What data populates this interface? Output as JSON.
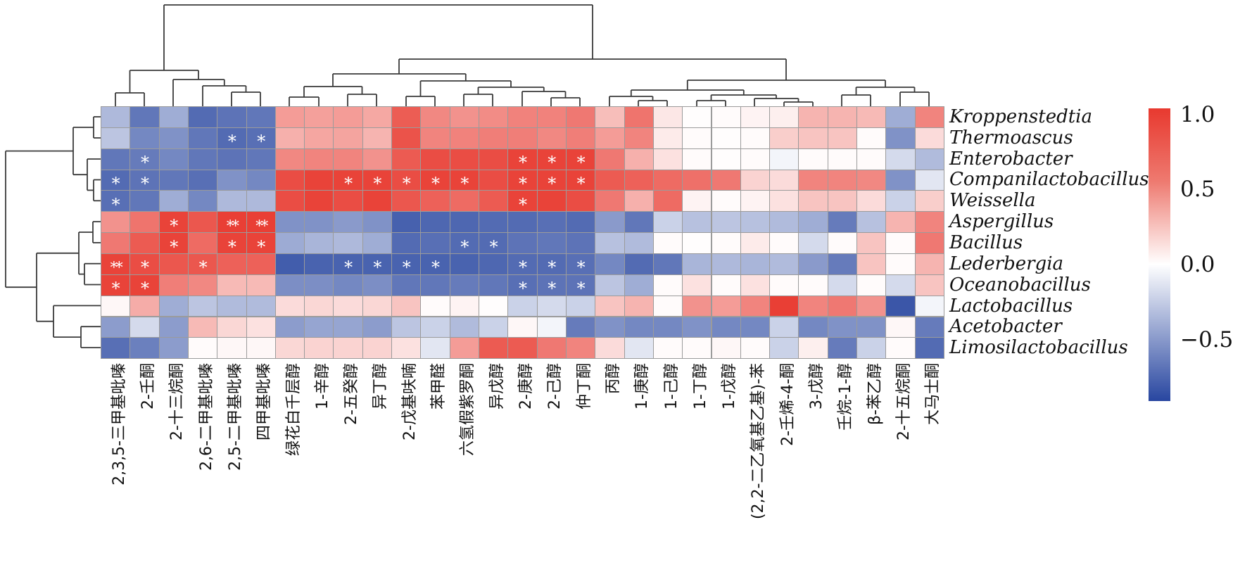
{
  "figure": {
    "kind": "clustered correlation heatmap with row and column dendrograms",
    "background": "#ffffff"
  },
  "chart_data": {
    "type": "heatmap",
    "rows": [
      "Kroppenstedtia",
      "Thermoascus",
      "Enterobacter",
      "Companilactobacillus",
      "Weissella",
      "Aspergillus",
      "Bacillus",
      "Lederbergia",
      "Oceanobacillus",
      "Lactobacillus",
      "Acetobacter",
      "Limosilactobacillus"
    ],
    "columns": [
      "2,3,5-三甲基吡嗪",
      "2-壬酮",
      "2-十三烷酮",
      "2,6-二甲基吡嗪",
      "2,5-二甲基吡嗪",
      "四甲基吡嗪",
      "绿花白千层醇",
      "1-辛醇",
      "2-五癸醇",
      "异丁醇",
      "2-戊基呋喃",
      "苯甲醛",
      "六氢假紫罗酮",
      "异戊醇",
      "2-庚醇",
      "2-己醇",
      "仲丁酮",
      "丙醇",
      "1-庚醇",
      "1-己醇",
      "1-丁醇",
      "1-戊醇",
      "(2,2-二乙氧基乙基)-苯",
      "2-壬烯-4-酮",
      "3-戊醇",
      "壬烷-1-醇",
      "β-苯乙醇",
      "2-十五烷酮",
      "大马士酮"
    ],
    "values": [
      [
        -0.34,
        -0.66,
        -0.4,
        -0.72,
        -0.68,
        -0.66,
        0.5,
        0.48,
        0.5,
        0.44,
        0.82,
        0.6,
        0.55,
        0.58,
        0.63,
        0.63,
        0.68,
        0.33,
        0.7,
        0.12,
        0.01,
        0.02,
        0.06,
        0.08,
        0.38,
        0.38,
        0.35,
        -0.4,
        0.62
      ],
      [
        -0.28,
        -0.58,
        -0.53,
        -0.66,
        -0.72,
        -0.7,
        0.4,
        0.45,
        0.46,
        0.38,
        0.87,
        0.62,
        0.63,
        0.65,
        0.65,
        0.6,
        0.65,
        0.5,
        0.62,
        0.1,
        0.02,
        0.01,
        0.02,
        0.25,
        0.3,
        0.3,
        0.02,
        -0.53,
        0.18
      ],
      [
        -0.66,
        -0.64,
        -0.58,
        -0.66,
        -0.68,
        -0.66,
        0.6,
        0.62,
        0.62,
        0.55,
        0.83,
        0.9,
        0.9,
        0.9,
        0.95,
        0.95,
        0.95,
        0.68,
        0.4,
        0.15,
        0.02,
        0.01,
        0.02,
        -0.05,
        0.02,
        0.02,
        0.02,
        -0.18,
        -0.33
      ],
      [
        -0.72,
        -0.68,
        -0.66,
        -0.7,
        -0.53,
        -0.58,
        0.9,
        0.95,
        0.95,
        0.95,
        0.9,
        0.95,
        0.95,
        0.9,
        0.95,
        0.95,
        0.95,
        0.83,
        0.8,
        0.75,
        0.72,
        0.68,
        0.22,
        0.18,
        0.62,
        0.62,
        0.6,
        -0.53,
        -0.12
      ],
      [
        -0.7,
        -0.66,
        -0.4,
        -0.58,
        -0.34,
        -0.34,
        0.9,
        0.95,
        0.9,
        0.95,
        0.85,
        0.8,
        0.75,
        0.83,
        0.95,
        0.95,
        0.9,
        0.68,
        0.4,
        0.75,
        0.06,
        0.02,
        0.06,
        0.15,
        0.3,
        0.3,
        0.18,
        -0.22,
        0.25
      ],
      [
        0.55,
        0.7,
        0.95,
        0.85,
        0.97,
        0.97,
        -0.53,
        -0.53,
        -0.49,
        -0.53,
        -0.77,
        -0.74,
        -0.74,
        -0.72,
        -0.72,
        -0.7,
        -0.72,
        -0.49,
        -0.66,
        -0.22,
        -0.3,
        -0.28,
        -0.3,
        -0.33,
        -0.4,
        -0.64,
        -0.3,
        0.38,
        0.62
      ],
      [
        0.68,
        0.83,
        0.95,
        0.75,
        0.95,
        0.95,
        -0.41,
        -0.36,
        -0.34,
        -0.4,
        -0.72,
        -0.7,
        -0.72,
        -0.72,
        -0.68,
        -0.66,
        -0.68,
        -0.3,
        -0.33,
        0.02,
        0.01,
        0.02,
        0.1,
        0.02,
        -0.18,
        0.02,
        0.3,
        0.02,
        0.68
      ],
      [
        0.95,
        0.9,
        0.85,
        0.85,
        0.8,
        0.8,
        -0.79,
        -0.76,
        -0.76,
        -0.76,
        -0.76,
        -0.76,
        -0.76,
        -0.74,
        -0.72,
        -0.72,
        -0.7,
        -0.58,
        -0.72,
        -0.66,
        -0.36,
        -0.34,
        -0.36,
        -0.33,
        -0.49,
        -0.64,
        0.3,
        0.02,
        0.38
      ],
      [
        0.95,
        0.95,
        0.65,
        0.6,
        0.35,
        0.35,
        -0.55,
        -0.55,
        -0.58,
        -0.55,
        -0.66,
        -0.66,
        -0.64,
        -0.66,
        -0.7,
        -0.68,
        -0.68,
        -0.28,
        -0.4,
        0.02,
        0.15,
        0.02,
        0.15,
        0.02,
        0.02,
        -0.18,
        0.02,
        -0.18,
        0.3
      ],
      [
        0.04,
        0.42,
        -0.4,
        -0.28,
        -0.33,
        -0.33,
        0.18,
        0.2,
        0.18,
        0.2,
        0.3,
        0.02,
        0.06,
        0.01,
        -0.22,
        -0.18,
        -0.22,
        0.3,
        0.38,
        0.02,
        0.55,
        0.5,
        0.62,
        0.97,
        0.62,
        0.68,
        0.55,
        -0.82,
        -0.05
      ],
      [
        -0.48,
        -0.18,
        -0.48,
        0.35,
        0.2,
        0.15,
        -0.48,
        -0.44,
        -0.44,
        -0.48,
        -0.28,
        -0.22,
        -0.33,
        -0.22,
        0.04,
        -0.05,
        -0.64,
        -0.53,
        -0.58,
        -0.58,
        -0.53,
        -0.58,
        -0.58,
        -0.22,
        -0.58,
        -0.53,
        -0.53,
        0.04,
        -0.64
      ],
      [
        -0.7,
        -0.62,
        -0.48,
        0.02,
        0.04,
        0.04,
        0.2,
        0.22,
        0.22,
        0.22,
        0.15,
        -0.12,
        0.5,
        0.83,
        0.83,
        0.68,
        0.62,
        0.18,
        -0.12,
        0.02,
        0.02,
        0.04,
        0.02,
        -0.22,
        0.08,
        -0.64,
        -0.22,
        0.02,
        -0.72
      ]
    ],
    "significance": [
      [
        "",
        "",
        "",
        "",
        "",
        "",
        "",
        "",
        "",
        "",
        "",
        "",
        "",
        "",
        "",
        "",
        "",
        "",
        "",
        "",
        "",
        "",
        "",
        "",
        "",
        "",
        "",
        "",
        ""
      ],
      [
        "",
        "",
        "",
        "",
        "*",
        "*",
        "",
        "",
        "",
        "",
        "",
        "",
        "",
        "",
        "",
        "",
        "",
        "",
        "",
        "",
        "",
        "",
        "",
        "",
        "",
        "",
        "",
        "",
        ""
      ],
      [
        "",
        "*",
        "",
        "",
        "",
        "",
        "",
        "",
        "",
        "",
        "",
        "",
        "",
        "",
        "*",
        "*",
        "*",
        "",
        "",
        "",
        "",
        "",
        "",
        "",
        "",
        "",
        "",
        "",
        ""
      ],
      [
        "*",
        "*",
        "",
        "",
        "",
        "",
        "",
        "",
        "*",
        "*",
        "*",
        "*",
        "*",
        "",
        "*",
        "*",
        "*",
        "",
        "",
        "",
        "",
        "",
        "",
        "",
        "",
        "",
        "",
        "",
        ""
      ],
      [
        "*",
        "",
        "",
        "",
        "",
        "",
        "",
        "",
        "",
        "",
        "",
        "",
        "",
        "",
        "*",
        "",
        "",
        "",
        "",
        "",
        "",
        "",
        "",
        "",
        "",
        "",
        "",
        "",
        ""
      ],
      [
        "",
        "",
        "*",
        "",
        "**",
        "**",
        "",
        "",
        "",
        "",
        "",
        "",
        "",
        "",
        "",
        "",
        "",
        "",
        "",
        "",
        "",
        "",
        "",
        "",
        "",
        "",
        "",
        "",
        ""
      ],
      [
        "",
        "",
        "*",
        "",
        "*",
        "*",
        "",
        "",
        "",
        "",
        "",
        "",
        "*",
        "*",
        "",
        "",
        "",
        "",
        "",
        "",
        "",
        "",
        "",
        "",
        "",
        "",
        "",
        "",
        ""
      ],
      [
        "**",
        "*",
        "",
        "*",
        "",
        "",
        "",
        "",
        "*",
        "*",
        "*",
        "*",
        "",
        "",
        "*",
        "*",
        "*",
        "",
        "",
        "",
        "",
        "",
        "",
        "",
        "",
        "",
        "",
        "",
        ""
      ],
      [
        "*",
        "*",
        "",
        "",
        "",
        "",
        "",
        "",
        "",
        "",
        "",
        "",
        "",
        "",
        "*",
        "*",
        "*",
        "",
        "",
        "",
        "",
        "",
        "",
        "",
        "",
        "",
        "",
        "",
        ""
      ],
      [
        "",
        "",
        "",
        "",
        "",
        "",
        "",
        "",
        "",
        "",
        "",
        "",
        "",
        "",
        "",
        "",
        "",
        "",
        "",
        "",
        "",
        "",
        "",
        "",
        "",
        "",
        "",
        "",
        ""
      ],
      [
        "",
        "",
        "",
        "",
        "",
        "",
        "",
        "",
        "",
        "",
        "",
        "",
        "",
        "",
        "",
        "",
        "",
        "",
        "",
        "",
        "",
        "",
        "",
        "",
        "",
        "",
        "",
        "",
        ""
      ],
      [
        "",
        "",
        "",
        "",
        "",
        "",
        "",
        "",
        "",
        "",
        "",
        "",
        "",
        "",
        "",
        "",
        "",
        "",
        "",
        "",
        "",
        "",
        "",
        "",
        "",
        "",
        "",
        "",
        ""
      ]
    ],
    "colorbar": {
      "tick_labels": [
        "1.0",
        "0.5",
        "0.0",
        "−0.5"
      ],
      "tick_values": [
        1.0,
        0.5,
        0.0,
        -0.5
      ],
      "value_top": 1.04,
      "value_bottom": -0.91,
      "color_positive": "#e8392f",
      "color_negative": "#2846a0",
      "color_zero": "#ffffff"
    },
    "legend_position": "right",
    "row_dendrogram_position": "left",
    "col_dendrogram_position": "top",
    "grid_line_color": "#9b9b9b"
  },
  "dendrograms": {
    "line_color": "#3a3a3a",
    "top_segments": [
      [
        164,
        151,
        164,
        132
      ],
      [
        205,
        151,
        205,
        132
      ],
      [
        164,
        132,
        205,
        132
      ],
      [
        329,
        151,
        329,
        131
      ],
      [
        370,
        151,
        370,
        131
      ],
      [
        329,
        131,
        370,
        131
      ],
      [
        288,
        151,
        288,
        122
      ],
      [
        349.5,
        131,
        349.5,
        122
      ],
      [
        288,
        122,
        349.5,
        122
      ],
      [
        246,
        151,
        246,
        113
      ],
      [
        318.8,
        122,
        318.8,
        113
      ],
      [
        246,
        113,
        318.8,
        113
      ],
      [
        184.5,
        132,
        184.5,
        100
      ],
      [
        282,
        113,
        282,
        100
      ],
      [
        184.5,
        100,
        282,
        100
      ],
      [
        233,
        100,
        233,
        7
      ],
      [
        842,
        84,
        842,
        7
      ],
      [
        233,
        7,
        842,
        7
      ],
      [
        411,
        151,
        411,
        138
      ],
      [
        453,
        151,
        453,
        138
      ],
      [
        411,
        138,
        453,
        138
      ],
      [
        494,
        151,
        494,
        134
      ],
      [
        535,
        151,
        535,
        134
      ],
      [
        494,
        134,
        535,
        134
      ],
      [
        432,
        138,
        432,
        123
      ],
      [
        514.5,
        134,
        514.5,
        123
      ],
      [
        432,
        123,
        514.5,
        123
      ],
      [
        577,
        151,
        577,
        137
      ],
      [
        618,
        151,
        618,
        137
      ],
      [
        577,
        137,
        618,
        137
      ],
      [
        659,
        151,
        659,
        134
      ],
      [
        700,
        151,
        700,
        134
      ],
      [
        659,
        134,
        700,
        134
      ],
      [
        783,
        151,
        783,
        139
      ],
      [
        824,
        151,
        824,
        139
      ],
      [
        783,
        139,
        824,
        139
      ],
      [
        742,
        151,
        742,
        130
      ],
      [
        803.5,
        139,
        803.5,
        130
      ],
      [
        742,
        130,
        803.5,
        130
      ],
      [
        679.5,
        134,
        679.5,
        124
      ],
      [
        772.8,
        130,
        772.8,
        124
      ],
      [
        679.5,
        124,
        772.8,
        124
      ],
      [
        597.5,
        137,
        597.5,
        115
      ],
      [
        726,
        124,
        726,
        115
      ],
      [
        597.5,
        115,
        726,
        115
      ],
      [
        473,
        123,
        473,
        105
      ],
      [
        661.8,
        115,
        661.8,
        105
      ],
      [
        473,
        105,
        661.8,
        105
      ],
      [
        567,
        105,
        567,
        84
      ],
      [
        1117,
        114,
        1117,
        84
      ],
      [
        567,
        84,
        1117,
        84
      ],
      [
        907,
        151,
        907,
        143
      ],
      [
        948,
        151,
        948,
        143
      ],
      [
        907,
        143,
        948,
        143
      ],
      [
        866,
        151,
        866,
        137
      ],
      [
        927.5,
        143,
        927.5,
        137
      ],
      [
        866,
        137,
        927.5,
        137
      ],
      [
        990,
        151,
        990,
        143
      ],
      [
        1031,
        151,
        1031,
        143
      ],
      [
        990,
        143,
        1031,
        143
      ],
      [
        1114,
        151,
        1114,
        145
      ],
      [
        1155,
        151,
        1155,
        145
      ],
      [
        1114,
        145,
        1155,
        145
      ],
      [
        1072,
        151,
        1072,
        140
      ],
      [
        1134.5,
        145,
        1134.5,
        140
      ],
      [
        1072,
        140,
        1134.5,
        140
      ],
      [
        1010.5,
        143,
        1010.5,
        135
      ],
      [
        1103,
        140,
        1103,
        135
      ],
      [
        1010.5,
        135,
        1103,
        135
      ],
      [
        896.8,
        137,
        896.8,
        128
      ],
      [
        1056.8,
        135,
        1056.8,
        128
      ],
      [
        896.8,
        128,
        1056.8,
        128
      ],
      [
        1196,
        151,
        1196,
        135
      ],
      [
        1237,
        151,
        1237,
        135
      ],
      [
        1196,
        135,
        1237,
        135
      ],
      [
        1279,
        151,
        1279,
        131
      ],
      [
        1320,
        151,
        1320,
        131
      ],
      [
        1279,
        131,
        1320,
        131
      ],
      [
        1216.5,
        135,
        1216.5,
        124
      ],
      [
        1299.5,
        131,
        1299.5,
        124
      ],
      [
        1216.5,
        124,
        1299.5,
        124
      ],
      [
        976.8,
        128,
        976.8,
        114
      ],
      [
        1258,
        124,
        1258,
        114
      ],
      [
        976.8,
        114,
        1258,
        114
      ]
    ],
    "left_segments": [
      [
        143,
        166,
        133,
        166
      ],
      [
        143,
        196,
        133,
        196
      ],
      [
        133,
        166,
        133,
        196
      ],
      [
        143,
        255.5,
        133,
        255.5
      ],
      [
        143,
        285.3,
        133,
        285.3
      ],
      [
        133,
        255.5,
        133,
        285.3
      ],
      [
        143,
        226,
        124,
        226
      ],
      [
        133,
        270.4,
        124,
        270.4
      ],
      [
        124,
        226,
        124,
        270.4
      ],
      [
        133,
        181,
        104,
        181
      ],
      [
        124,
        248.2,
        104,
        248.2
      ],
      [
        104,
        181,
        104,
        248.2
      ],
      [
        143,
        315,
        132,
        315
      ],
      [
        143,
        344.9,
        132,
        344.9
      ],
      [
        132,
        315,
        132,
        344.9
      ],
      [
        143,
        374.7,
        120,
        374.7
      ],
      [
        143,
        404.5,
        120,
        404.5
      ],
      [
        120,
        374.7,
        120,
        404.5
      ],
      [
        132,
        330,
        112,
        330
      ],
      [
        120,
        389.6,
        112,
        389.6
      ],
      [
        112,
        330,
        112,
        389.6
      ],
      [
        143,
        464.2,
        115,
        464.2
      ],
      [
        143,
        494,
        115,
        494
      ],
      [
        115,
        464.2,
        115,
        494
      ],
      [
        143,
        434.4,
        76,
        434.4
      ],
      [
        115,
        479.1,
        76,
        479.1
      ],
      [
        76,
        434.4,
        76,
        479.1
      ],
      [
        112,
        359.8,
        52,
        359.8
      ],
      [
        76,
        456.7,
        52,
        456.7
      ],
      [
        52,
        359.8,
        52,
        456.7
      ],
      [
        104,
        214.6,
        8,
        214.6
      ],
      [
        52,
        408.2,
        8,
        408.2
      ],
      [
        8,
        214.6,
        8,
        408.2
      ]
    ]
  }
}
